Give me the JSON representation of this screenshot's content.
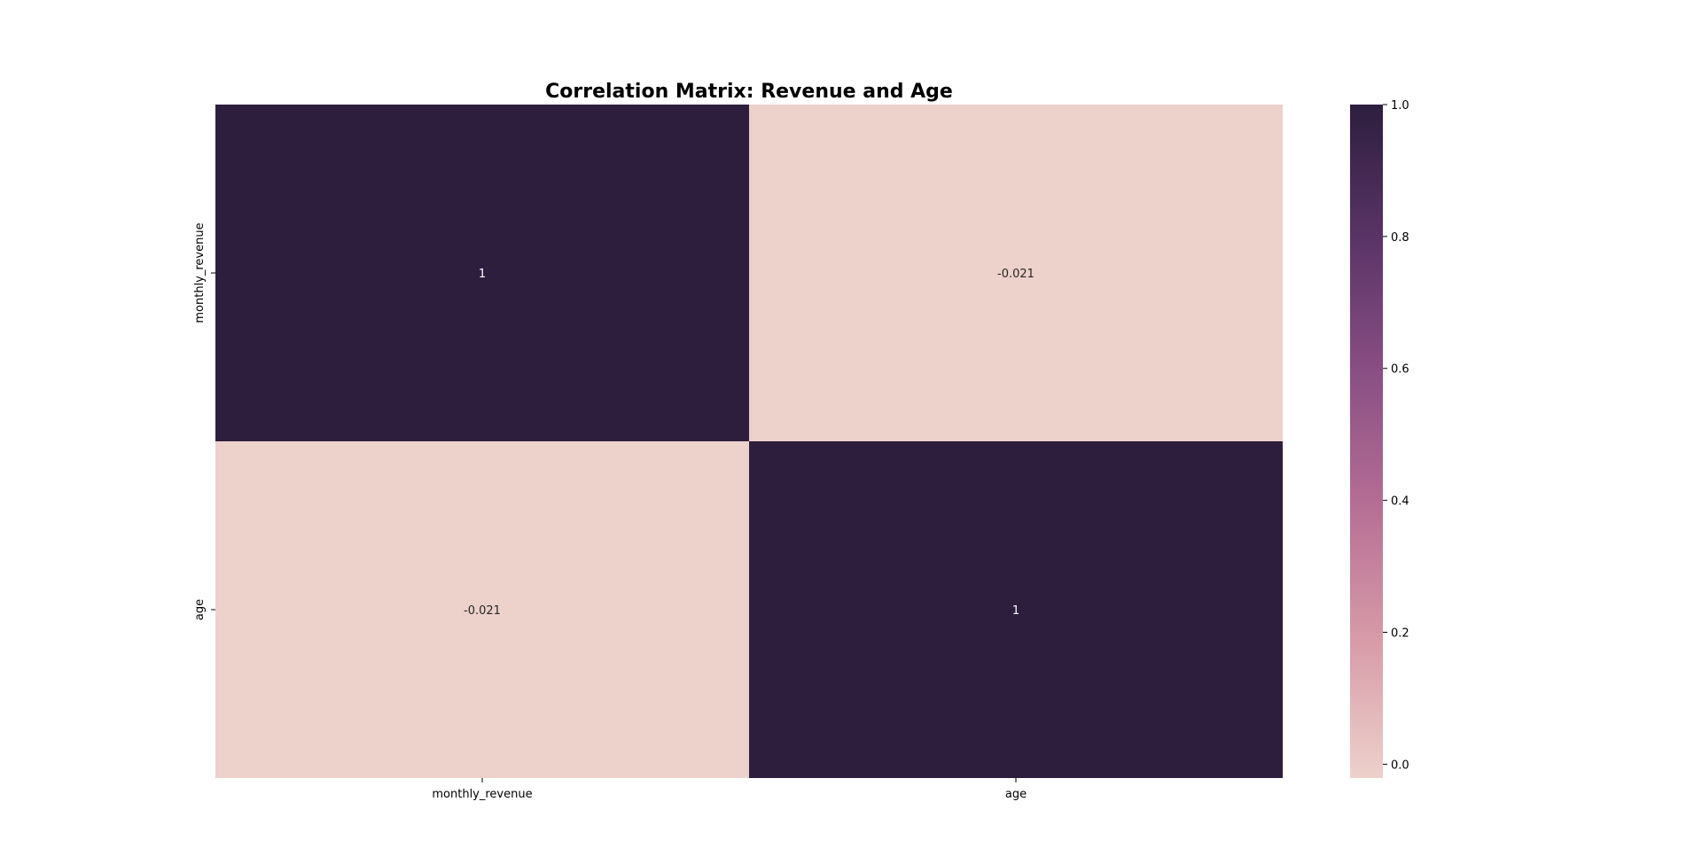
{
  "chart_data": {
    "type": "heatmap",
    "title": "Correlation Matrix: Revenue and Age",
    "xlabel": "",
    "ylabel": "",
    "row_labels": [
      "monthly_revenue",
      "age"
    ],
    "col_labels": [
      "monthly_revenue",
      "age"
    ],
    "values": [
      [
        1,
        -0.021
      ],
      [
        -0.021,
        1
      ]
    ],
    "annotations": [
      [
        "1",
        "-0.021"
      ],
      [
        "-0.021",
        "1"
      ]
    ],
    "colorbar": {
      "range": [
        -0.021,
        1.0
      ],
      "ticks": [
        0.0,
        0.2,
        0.4,
        0.6,
        0.8,
        1.0
      ],
      "tick_labels": [
        "0.0",
        "0.2",
        "0.4",
        "0.6",
        "0.8",
        "1.0"
      ],
      "colors": [
        "#edd1cb",
        "#d89ca8",
        "#b66f95",
        "#8a4f84",
        "#5a3467",
        "#2d1e3e"
      ]
    },
    "annotation_colors": {
      "dark_bg": "#ffffff",
      "light_bg": "#262626"
    },
    "grid": false,
    "legend": "colorbar right"
  }
}
